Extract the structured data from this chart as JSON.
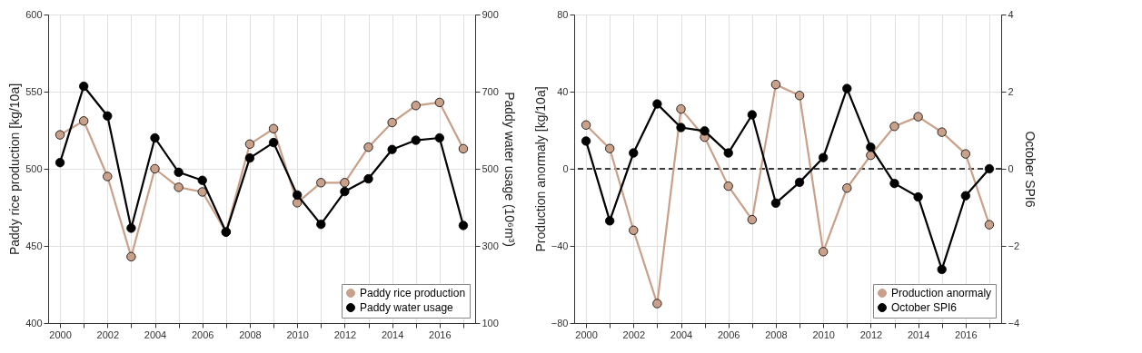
{
  "chart_data": [
    {
      "type": "line",
      "x": [
        2000,
        2001,
        2002,
        2003,
        2004,
        2005,
        2006,
        2007,
        2008,
        2009,
        2010,
        2011,
        2012,
        2013,
        2014,
        2015,
        2016,
        2017
      ],
      "series": [
        {
          "name": "Paddy rice production",
          "color": "#c9a089",
          "values": [
            522,
            531,
            495,
            443,
            500,
            488,
            485,
            459,
            516,
            526,
            478,
            491,
            491,
            514,
            530,
            541,
            543,
            513
          ]
        },
        {
          "name": "Paddy water usage",
          "color": "#000000",
          "axis": "y2",
          "values": [
            516,
            714,
            637,
            346,
            580,
            491,
            470,
            336,
            528,
            568,
            432,
            356,
            441,
            474,
            550,
            574,
            580,
            353
          ]
        }
      ],
      "ylabel": "Paddy rice production [kg/10a]",
      "y2label": "Paddy water usage (10⁶m³)",
      "xlim": [
        1999.5,
        2017.5
      ],
      "xticks": [
        2000,
        {
          "value": 2001,
          "label": null
        },
        2002,
        {
          "value": 2003,
          "label": null
        },
        2004,
        {
          "value": 2005,
          "label": null
        },
        2006,
        {
          "value": 2007,
          "label": null
        },
        2008,
        {
          "value": 2009,
          "label": null
        },
        2010,
        {
          "value": 2011,
          "label": null
        },
        2012,
        {
          "value": 2013,
          "label": null
        },
        2014,
        {
          "value": 2015,
          "label": null
        },
        2016,
        {
          "value": 2017,
          "label": null
        }
      ],
      "ylim": [
        400,
        600
      ],
      "yticks": [
        400,
        450,
        500,
        550,
        600
      ],
      "y2lim": [
        100,
        900
      ],
      "y2ticks": [
        100,
        300,
        500,
        700,
        900
      ],
      "grid": true,
      "legend": "bottom right",
      "marker": "circle"
    },
    {
      "type": "line",
      "x": [
        2000,
        2001,
        2002,
        2003,
        2004,
        2005,
        2006,
        2007,
        2008,
        2009,
        2010,
        2011,
        2012,
        2013,
        2014,
        2015,
        2016,
        2017
      ],
      "series": [
        {
          "name": "Production anormaly",
          "color": "#c9a089",
          "values": [
            22.7,
            10.5,
            -31.9,
            -69.9,
            31,
            16.4,
            -9,
            -26.4,
            43.7,
            38,
            -43,
            -10,
            7,
            22,
            27,
            19,
            7.7,
            -29
          ]
        },
        {
          "name": "October SPI6",
          "color": "#000000",
          "axis": "y2",
          "values": [
            0.72,
            -1.35,
            0.41,
            1.68,
            1.07,
            0.98,
            0.41,
            1.4,
            -0.89,
            -0.35,
            0.29,
            2.08,
            0.56,
            -0.38,
            -0.73,
            -2.61,
            -0.7,
            0
          ]
        }
      ],
      "ylabel": "Production anormaly [kg/10a]",
      "y2label": "October SPI6",
      "xlim": [
        1999.5,
        2017.5
      ],
      "xticks": [
        2000,
        {
          "value": 2001,
          "label": null
        },
        2002,
        {
          "value": 2003,
          "label": null
        },
        2004,
        {
          "value": 2005,
          "label": null
        },
        2006,
        {
          "value": 2007,
          "label": null
        },
        2008,
        {
          "value": 2009,
          "label": null
        },
        2010,
        {
          "value": 2011,
          "label": null
        },
        2012,
        {
          "value": 2013,
          "label": null
        },
        2014,
        {
          "value": 2015,
          "label": null
        },
        2016,
        {
          "value": 2017,
          "label": null
        }
      ],
      "ylim": [
        -80,
        80
      ],
      "yticks": [
        -80,
        -40,
        0,
        40,
        80
      ],
      "y2lim": [
        -4,
        4
      ],
      "y2ticks": [
        -4,
        -2,
        0,
        2,
        4
      ],
      "ref_lines": [
        {
          "axis": "y",
          "value": 0,
          "color": "#000000",
          "line_style": "dashed"
        }
      ],
      "grid": true,
      "legend": "bottom right",
      "marker": "circle"
    }
  ]
}
